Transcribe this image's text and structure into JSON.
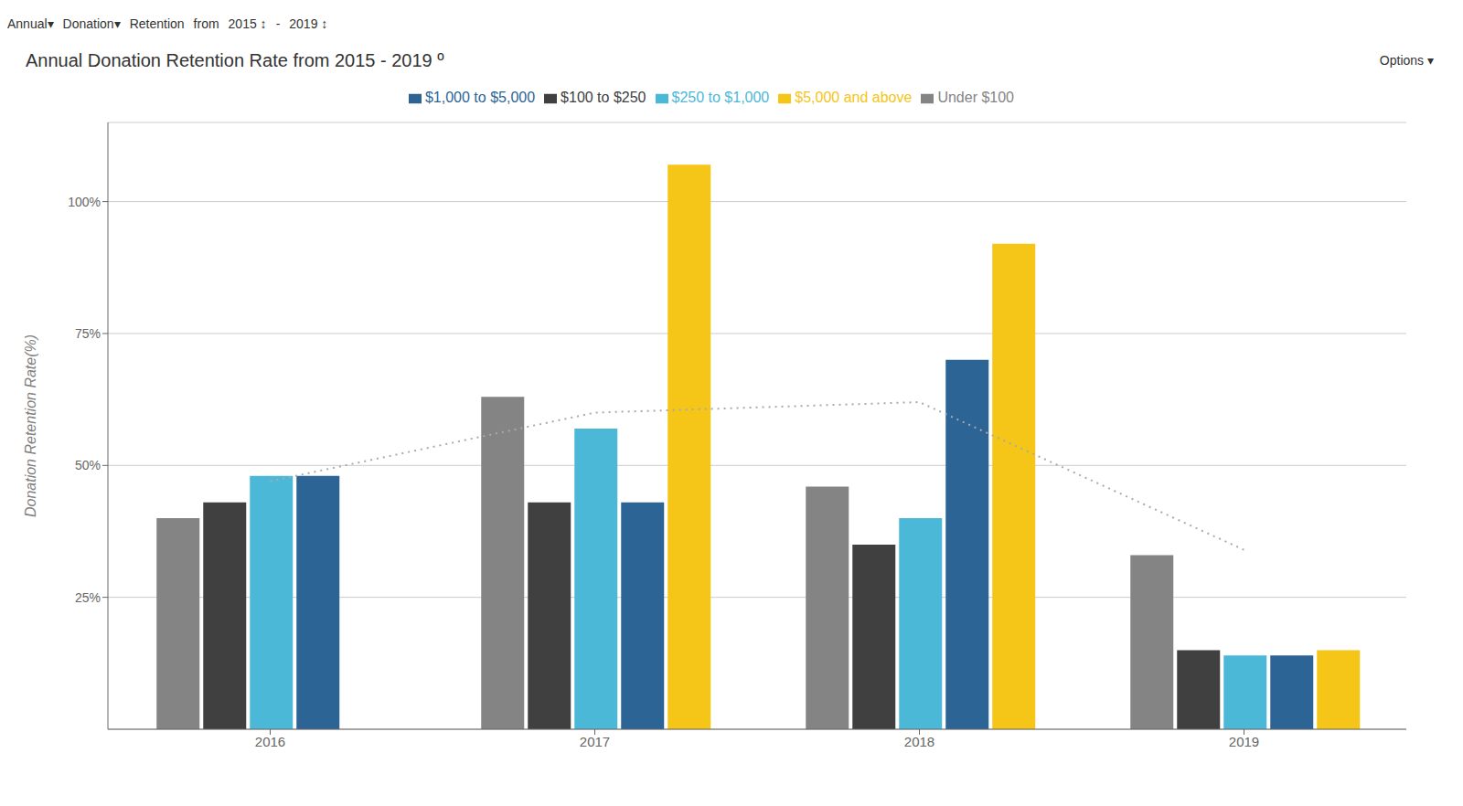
{
  "chart_data": {
    "type": "bar",
    "title": "Annual Donation Retention Rate from 2015 - 2019 º",
    "ylabel": "Donation Retention Rate(%)",
    "annotations": [
      "Annual▾",
      "Donation▾",
      "Retention",
      "from",
      "2015 ↕",
      "-",
      "2019 ↕",
      "Options ▾"
    ],
    "categories": [
      "2016",
      "2017",
      "2018",
      "2019"
    ],
    "series": [
      {
        "name": "Under $100",
        "color": "#848484",
        "values": [
          40,
          63,
          46,
          33
        ]
      },
      {
        "name": "$100 to $250",
        "color": "#404040",
        "values": [
          43,
          43,
          35,
          15
        ]
      },
      {
        "name": "$250 to $1,000",
        "color": "#4cb8d8",
        "values": [
          48,
          57,
          40,
          14
        ]
      },
      {
        "name": "$1,000 to $5,000",
        "color": "#2d6496",
        "values": [
          48,
          43,
          70,
          14
        ]
      },
      {
        "name": "$5,000 and above",
        "color": "#f5c518",
        "values": [
          null,
          107,
          92,
          15
        ]
      },
      {
        "type": "line",
        "color": "#aaaaaa",
        "line_style": "dotted",
        "values": [
          47,
          60,
          62,
          34
        ]
      }
    ],
    "ylim": [
      0,
      115
    ],
    "yticks": [
      {
        "value": 25,
        "label": "25%"
      },
      {
        "value": 50,
        "label": "50%"
      },
      {
        "value": 75,
        "label": "75%"
      },
      {
        "value": 100,
        "label": "100%"
      }
    ],
    "grid": true,
    "legend": "top"
  }
}
